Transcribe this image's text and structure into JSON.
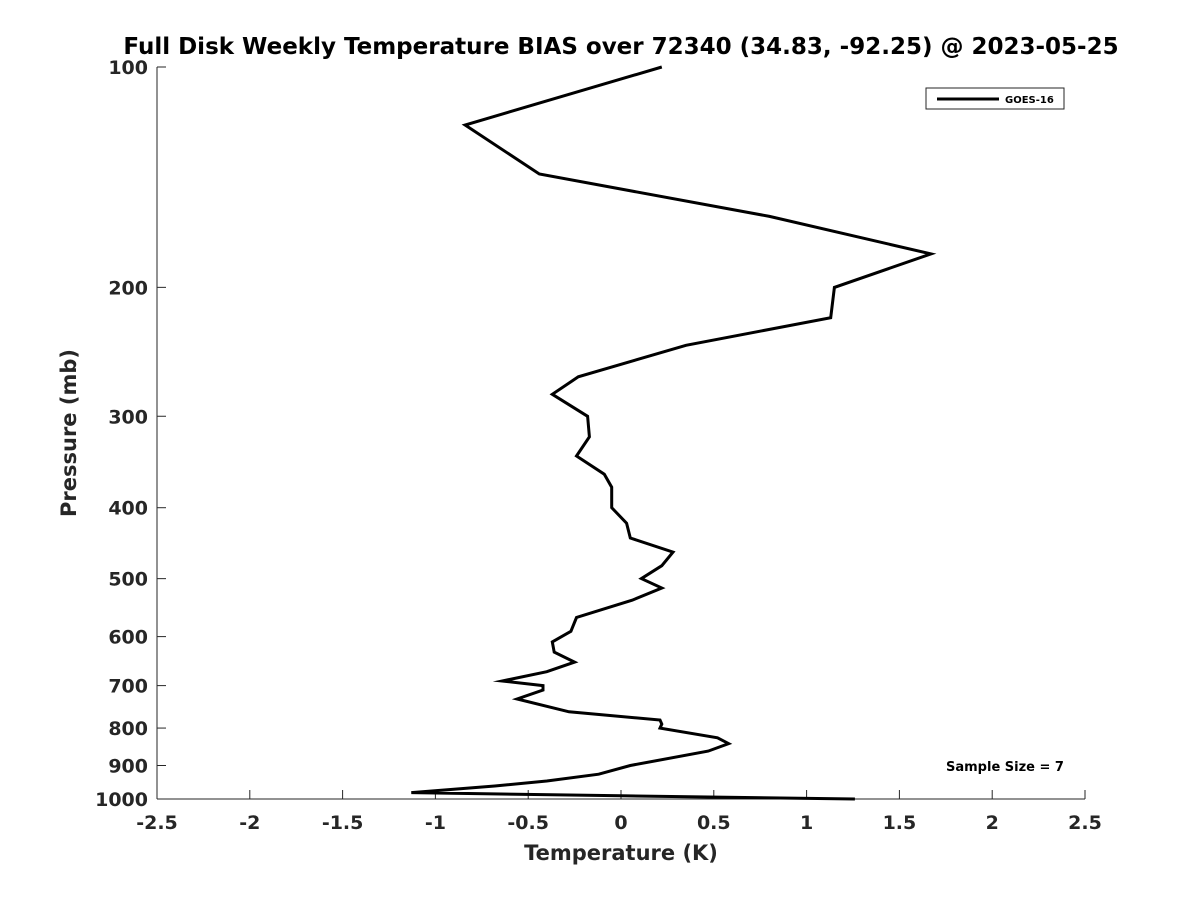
{
  "chart_data": {
    "type": "line",
    "title": "Full Disk Weekly Temperature BIAS over 72340 (34.83, -92.25) @ 2023-05-25",
    "xlabel": "Temperature (K)",
    "ylabel": "Pressure (mb)",
    "xlim": [
      -2.5,
      2.5
    ],
    "ylim": [
      1000,
      100
    ],
    "y_scale": "log",
    "y_reversed": true,
    "grid": false,
    "x_ticks": [
      "-2.5",
      "-2",
      "-1.5",
      "-1",
      "-0.5",
      "0",
      "0.5",
      "1",
      "1.5",
      "2",
      "2.5"
    ],
    "x_tick_values": [
      -2.5,
      -2,
      -1.5,
      -1,
      -0.5,
      0,
      0.5,
      1,
      1.5,
      2,
      2.5
    ],
    "y_ticks": [
      "100",
      "200",
      "300",
      "400",
      "500",
      "600",
      "700",
      "800",
      "900",
      "1000"
    ],
    "y_tick_values": [
      100,
      200,
      300,
      400,
      500,
      600,
      700,
      800,
      900,
      1000
    ],
    "legend": {
      "placement": "top-right",
      "entries": [
        "GOES-16"
      ]
    },
    "annotation": "Sample Size = 7",
    "series": [
      {
        "name": "GOES-16",
        "color": "#000000",
        "points": [
          {
            "x": 0.22,
            "y": 100
          },
          {
            "x": -0.84,
            "y": 120
          },
          {
            "x": -0.44,
            "y": 140
          },
          {
            "x": 0.8,
            "y": 160
          },
          {
            "x": 1.67,
            "y": 180
          },
          {
            "x": 1.15,
            "y": 200
          },
          {
            "x": 1.13,
            "y": 220
          },
          {
            "x": 0.35,
            "y": 240
          },
          {
            "x": -0.23,
            "y": 265
          },
          {
            "x": -0.37,
            "y": 280
          },
          {
            "x": -0.18,
            "y": 300
          },
          {
            "x": -0.17,
            "y": 320
          },
          {
            "x": -0.24,
            "y": 340
          },
          {
            "x": -0.09,
            "y": 360
          },
          {
            "x": -0.05,
            "y": 375
          },
          {
            "x": -0.05,
            "y": 400
          },
          {
            "x": 0.03,
            "y": 420
          },
          {
            "x": 0.05,
            "y": 440
          },
          {
            "x": 0.28,
            "y": 460
          },
          {
            "x": 0.22,
            "y": 480
          },
          {
            "x": 0.11,
            "y": 500
          },
          {
            "x": 0.22,
            "y": 515
          },
          {
            "x": 0.06,
            "y": 535
          },
          {
            "x": -0.24,
            "y": 565
          },
          {
            "x": -0.27,
            "y": 590
          },
          {
            "x": -0.37,
            "y": 610
          },
          {
            "x": -0.36,
            "y": 630
          },
          {
            "x": -0.25,
            "y": 650
          },
          {
            "x": -0.4,
            "y": 670
          },
          {
            "x": -0.64,
            "y": 690
          },
          {
            "x": -0.42,
            "y": 700
          },
          {
            "x": -0.42,
            "y": 710
          },
          {
            "x": -0.56,
            "y": 730
          },
          {
            "x": -0.28,
            "y": 760
          },
          {
            "x": 0.21,
            "y": 780
          },
          {
            "x": 0.22,
            "y": 790
          },
          {
            "x": 0.21,
            "y": 800
          },
          {
            "x": 0.52,
            "y": 825
          },
          {
            "x": 0.58,
            "y": 840
          },
          {
            "x": 0.47,
            "y": 860
          },
          {
            "x": 0.05,
            "y": 900
          },
          {
            "x": -0.12,
            "y": 925
          },
          {
            "x": -0.4,
            "y": 945
          },
          {
            "x": -0.68,
            "y": 960
          },
          {
            "x": -1.13,
            "y": 980
          },
          {
            "x": 0.0,
            "y": 990
          },
          {
            "x": 1.26,
            "y": 1000
          }
        ]
      }
    ]
  }
}
